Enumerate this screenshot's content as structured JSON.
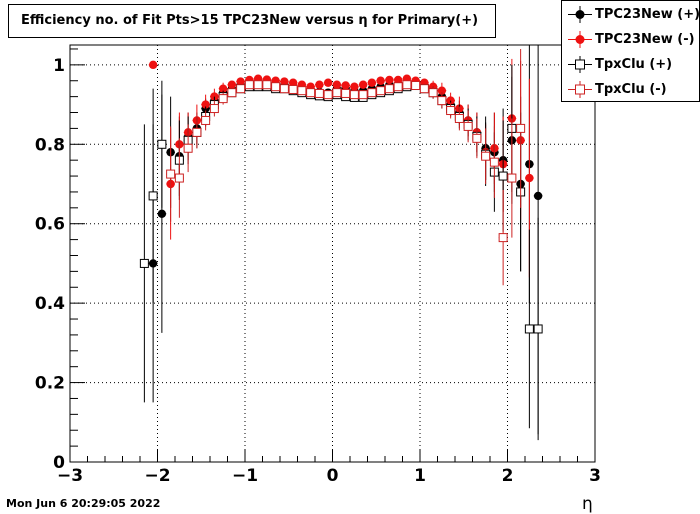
{
  "title": "Efficiency no. of Fit Pts>15 TPC23New versus η for Primary(+)",
  "timestamp": "Mon Jun  6 20:29:05 2022",
  "chart_data": {
    "type": "scatter",
    "title": "Efficiency no. of Fit Pts>15 TPC23New versus η for Primary(+)",
    "xlabel": "η",
    "ylabel": "",
    "xlim": [
      -3,
      3
    ],
    "ylim": [
      0,
      1.05
    ],
    "x_ticks": [
      -3,
      -2,
      -1,
      0,
      1,
      2,
      3
    ],
    "y_ticks": [
      0,
      0.2,
      0.4,
      0.6,
      0.8,
      1
    ],
    "x_tick_labels": [
      "−3",
      "−2",
      "−1",
      "0",
      "1",
      "2",
      "3"
    ],
    "y_tick_labels": [
      "0",
      "0.2",
      "0.4",
      "0.6",
      "0.8",
      "1"
    ],
    "grid": true,
    "legend_position": "top-right",
    "series": [
      {
        "name": "TPC23New (+)",
        "color": "#000000",
        "marker": "filled-circle",
        "x": [
          -2.05,
          -1.95,
          -1.85,
          -1.75,
          -1.65,
          -1.55,
          -1.45,
          -1.35,
          -1.25,
          -1.15,
          -1.05,
          -0.95,
          -0.85,
          -0.75,
          -0.65,
          -0.55,
          -0.45,
          -0.35,
          -0.25,
          -0.15,
          -0.05,
          0.05,
          0.15,
          0.25,
          0.35,
          0.45,
          0.55,
          0.65,
          0.75,
          0.85,
          0.95,
          1.05,
          1.15,
          1.25,
          1.35,
          1.45,
          1.55,
          1.65,
          1.75,
          1.85,
          1.95,
          2.05,
          2.15,
          2.25,
          2.35
        ],
        "y": [
          0.5,
          0.625,
          0.78,
          0.77,
          0.82,
          0.84,
          0.89,
          0.91,
          0.93,
          0.94,
          0.95,
          0.955,
          0.958,
          0.955,
          0.952,
          0.95,
          0.945,
          0.94,
          0.935,
          0.932,
          0.93,
          0.94,
          0.942,
          0.935,
          0.935,
          0.94,
          0.945,
          0.95,
          0.952,
          0.955,
          0.955,
          0.948,
          0.94,
          0.92,
          0.9,
          0.88,
          0.86,
          0.83,
          0.79,
          0.78,
          0.76,
          0.81,
          0.7,
          0.75,
          0.67
        ],
        "err": [
          0.35,
          0.3,
          0.14,
          0.1,
          0.06,
          0.04,
          0.025,
          0.02,
          0.015,
          0.01,
          0.01,
          0.01,
          0.01,
          0.01,
          0.01,
          0.01,
          0.01,
          0.01,
          0.01,
          0.01,
          0.01,
          0.01,
          0.01,
          0.01,
          0.01,
          0.01,
          0.01,
          0.01,
          0.01,
          0.01,
          0.01,
          0.01,
          0.015,
          0.02,
          0.02,
          0.03,
          0.04,
          0.05,
          0.08,
          0.1,
          0.13,
          0.16,
          0.22,
          0.35,
          0.6
        ]
      },
      {
        "name": "TPC23New (-)",
        "color": "#ee1111",
        "marker": "filled-circle",
        "x": [
          -2.15,
          -2.05,
          -1.85,
          -1.75,
          -1.65,
          -1.55,
          -1.45,
          -1.35,
          -1.25,
          -1.15,
          -1.05,
          -0.95,
          -0.85,
          -0.75,
          -0.65,
          -0.55,
          -0.45,
          -0.35,
          -0.25,
          -0.15,
          -0.05,
          0.05,
          0.15,
          0.25,
          0.35,
          0.45,
          0.55,
          0.65,
          0.75,
          0.85,
          0.95,
          1.05,
          1.15,
          1.25,
          1.35,
          1.45,
          1.55,
          1.65,
          1.75,
          1.85,
          1.95,
          2.05,
          2.15,
          2.25
        ],
        "y": [
          0.5,
          1.0,
          0.7,
          0.8,
          0.83,
          0.86,
          0.9,
          0.92,
          0.94,
          0.95,
          0.958,
          0.962,
          0.965,
          0.963,
          0.96,
          0.958,
          0.955,
          0.95,
          0.945,
          0.95,
          0.955,
          0.95,
          0.948,
          0.945,
          0.95,
          0.955,
          0.96,
          0.962,
          0.962,
          0.965,
          0.96,
          0.955,
          0.945,
          0.935,
          0.91,
          0.89,
          0.86,
          0.83,
          0.78,
          0.79,
          0.75,
          0.865,
          0.81,
          0.715
        ],
        "err": [
          0.0,
          0.0,
          0.14,
          0.08,
          0.05,
          0.04,
          0.025,
          0.02,
          0.015,
          0.01,
          0.01,
          0.01,
          0.01,
          0.01,
          0.01,
          0.01,
          0.01,
          0.01,
          0.01,
          0.01,
          0.01,
          0.01,
          0.01,
          0.01,
          0.01,
          0.01,
          0.01,
          0.01,
          0.01,
          0.01,
          0.01,
          0.01,
          0.015,
          0.02,
          0.02,
          0.03,
          0.04,
          0.05,
          0.07,
          0.09,
          0.12,
          0.15,
          0.2,
          0.25
        ]
      },
      {
        "name": "TpxClu (+)",
        "color": "#000000",
        "marker": "open-square",
        "x": [
          -2.15,
          -2.05,
          -1.95,
          -1.75,
          -1.65,
          -1.55,
          -1.45,
          -1.35,
          -1.25,
          -1.15,
          -1.05,
          -0.95,
          -0.85,
          -0.75,
          -0.65,
          -0.55,
          -0.45,
          -0.35,
          -0.25,
          -0.15,
          -0.05,
          0.05,
          0.15,
          0.25,
          0.35,
          0.45,
          0.55,
          0.65,
          0.75,
          0.85,
          0.95,
          1.05,
          1.15,
          1.25,
          1.35,
          1.45,
          1.55,
          1.65,
          1.75,
          1.85,
          1.95,
          2.05,
          2.15,
          2.25,
          2.35
        ],
        "y": [
          0.5,
          0.67,
          0.8,
          0.76,
          0.81,
          0.83,
          0.87,
          0.9,
          0.92,
          0.93,
          0.94,
          0.945,
          0.945,
          0.945,
          0.94,
          0.94,
          0.935,
          0.93,
          0.925,
          0.922,
          0.92,
          0.925,
          0.92,
          0.918,
          0.918,
          0.925,
          0.93,
          0.935,
          0.94,
          0.945,
          0.948,
          0.94,
          0.93,
          0.91,
          0.89,
          0.87,
          0.85,
          0.82,
          0.775,
          0.73,
          0.72,
          0.84,
          0.68,
          0.335,
          0.335
        ],
        "err": [
          0.35,
          0.27,
          0.16,
          0.1,
          0.06,
          0.04,
          0.025,
          0.02,
          0.015,
          0.01,
          0.01,
          0.01,
          0.01,
          0.01,
          0.01,
          0.01,
          0.01,
          0.01,
          0.01,
          0.01,
          0.01,
          0.01,
          0.01,
          0.01,
          0.01,
          0.01,
          0.01,
          0.01,
          0.01,
          0.01,
          0.01,
          0.01,
          0.015,
          0.02,
          0.02,
          0.03,
          0.04,
          0.05,
          0.08,
          0.1,
          0.14,
          0.16,
          0.2,
          0.25,
          0.28
        ]
      },
      {
        "name": "TpxClu (-)",
        "color": "#cc2222",
        "marker": "open-square",
        "x": [
          -1.85,
          -1.75,
          -1.65,
          -1.55,
          -1.45,
          -1.35,
          -1.25,
          -1.15,
          -1.05,
          -0.95,
          -0.85,
          -0.75,
          -0.65,
          -0.55,
          -0.45,
          -0.35,
          -0.25,
          -0.15,
          -0.05,
          0.05,
          0.15,
          0.25,
          0.35,
          0.45,
          0.55,
          0.65,
          0.75,
          0.85,
          0.95,
          1.05,
          1.15,
          1.25,
          1.35,
          1.45,
          1.55,
          1.65,
          1.75,
          1.85,
          1.95,
          2.05,
          2.15
        ],
        "y": [
          0.725,
          0.715,
          0.79,
          0.83,
          0.86,
          0.89,
          0.915,
          0.93,
          0.94,
          0.95,
          0.95,
          0.95,
          0.945,
          0.94,
          0.938,
          0.935,
          0.93,
          0.928,
          0.925,
          0.93,
          0.928,
          0.925,
          0.925,
          0.93,
          0.935,
          0.94,
          0.945,
          0.95,
          0.948,
          0.94,
          0.93,
          0.91,
          0.885,
          0.865,
          0.845,
          0.815,
          0.77,
          0.755,
          0.565,
          0.715,
          0.84
        ],
        "err": [
          0.12,
          0.1,
          0.06,
          0.04,
          0.025,
          0.02,
          0.015,
          0.01,
          0.01,
          0.01,
          0.01,
          0.01,
          0.01,
          0.01,
          0.01,
          0.01,
          0.01,
          0.01,
          0.01,
          0.01,
          0.01,
          0.01,
          0.01,
          0.01,
          0.01,
          0.01,
          0.01,
          0.01,
          0.01,
          0.01,
          0.015,
          0.02,
          0.02,
          0.03,
          0.04,
          0.05,
          0.07,
          0.09,
          0.12,
          0.15,
          0.2
        ]
      }
    ]
  }
}
